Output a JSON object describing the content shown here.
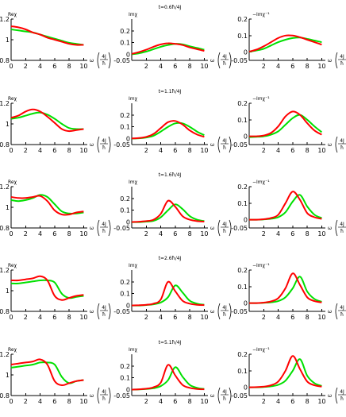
{
  "colors": {
    "red": "#ff0000",
    "green": "#00e000",
    "axis": "#000000"
  },
  "labels": {
    "re": "Reχ",
    "im": "Imχ",
    "neg": "−Imχ⁻¹",
    "omega": "ω",
    "unit_num": "4J",
    "unit_den": "ħ"
  },
  "chart_data": {
    "type": "line",
    "x_ticks": [
      0,
      2,
      4,
      6,
      8,
      10
    ],
    "x_range": [
      0,
      10.5
    ],
    "columns": [
      {
        "panel": "Reχ",
        "ylim": [
          0.8,
          1.2
        ],
        "y_ticks": [
          "0.8",
          "1",
          "1.2"
        ],
        "y_tick_values": [
          0.8,
          1.0,
          1.2
        ],
        "x_tick_labels": [
          "0",
          "2",
          "4",
          "6",
          "8",
          "10"
        ]
      },
      {
        "panel": "Imχ",
        "ylim": [
          -0.05,
          0.3
        ],
        "y_ticks": [
          "-0.05",
          "0",
          "0.1",
          "0.2"
        ],
        "y_tick_values": [
          -0.05,
          0.0,
          0.1,
          0.2
        ],
        "x_tick_labels": [
          "",
          "2",
          "4",
          "6",
          "8",
          "10"
        ]
      },
      {
        "panel": "−Imχ⁻¹",
        "ylim": [
          -0.05,
          0.2
        ],
        "y_ticks": [
          "-0.05",
          "0",
          "0.1",
          "0.2"
        ],
        "y_tick_values": [
          -0.05,
          0.0,
          0.1,
          0.2
        ],
        "x_tick_labels": [
          "",
          "2",
          "4",
          "6",
          "8",
          "10"
        ]
      }
    ],
    "rows": [
      {
        "title": "t=0.6ħ/4J",
        "panels": [
          {
            "red": {
              "x": [
                0,
                1,
                2,
                3,
                4,
                5,
                6,
                7,
                8,
                9,
                10
              ],
              "y": [
                1.13,
                1.12,
                1.1,
                1.07,
                1.05,
                1.02,
                1.0,
                0.98,
                0.96,
                0.95,
                0.95
              ]
            },
            "green": {
              "x": [
                0,
                1,
                2,
                3,
                4,
                5,
                6,
                7,
                8,
                9,
                10
              ],
              "y": [
                1.1,
                1.09,
                1.08,
                1.07,
                1.05,
                1.03,
                1.01,
                0.99,
                0.97,
                0.96,
                0.95
              ]
            }
          },
          {
            "red": {
              "x": [
                0,
                1,
                2,
                3,
                4,
                5,
                6,
                7,
                8,
                9,
                10
              ],
              "y": [
                0.005,
                0.02,
                0.04,
                0.065,
                0.085,
                0.095,
                0.09,
                0.08,
                0.06,
                0.045,
                0.03
              ]
            },
            "green": {
              "x": [
                0,
                1,
                2,
                3,
                4,
                5,
                6,
                7,
                8,
                9,
                10
              ],
              "y": [
                0.002,
                0.01,
                0.025,
                0.045,
                0.065,
                0.08,
                0.09,
                0.085,
                0.07,
                0.055,
                0.04
              ]
            }
          },
          {
            "red": {
              "x": [
                0,
                1,
                2,
                3,
                4,
                5,
                6,
                7,
                8,
                9,
                10
              ],
              "y": [
                0.003,
                0.015,
                0.035,
                0.06,
                0.085,
                0.1,
                0.1,
                0.09,
                0.075,
                0.06,
                0.045
              ]
            },
            "green": {
              "x": [
                0,
                1,
                2,
                3,
                4,
                5,
                6,
                7,
                8,
                9,
                10
              ],
              "y": [
                0.002,
                0.01,
                0.02,
                0.04,
                0.06,
                0.075,
                0.085,
                0.088,
                0.08,
                0.07,
                0.06
              ]
            }
          }
        ]
      },
      {
        "title": "t=1.1ħ/4J",
        "panels": [
          {
            "red": {
              "x": [
                0,
                1,
                2,
                3,
                4,
                5,
                6,
                7,
                8,
                9,
                10
              ],
              "y": [
                1.06,
                1.08,
                1.12,
                1.14,
                1.12,
                1.07,
                1.01,
                0.95,
                0.93,
                0.94,
                0.95
              ]
            },
            "green": {
              "x": [
                0,
                1,
                2,
                3,
                4,
                5,
                6,
                7,
                8,
                9,
                10
              ],
              "y": [
                1.05,
                1.06,
                1.08,
                1.1,
                1.11,
                1.09,
                1.05,
                1.0,
                0.96,
                0.95,
                0.95
              ]
            }
          },
          {
            "red": {
              "x": [
                0,
                1,
                2,
                3,
                4,
                5,
                6,
                7,
                8,
                9,
                10
              ],
              "y": [
                0.002,
                0.005,
                0.015,
                0.04,
                0.09,
                0.14,
                0.15,
                0.12,
                0.07,
                0.035,
                0.015
              ]
            },
            "green": {
              "x": [
                0,
                1,
                2,
                3,
                4,
                5,
                6,
                7,
                8,
                9,
                10
              ],
              "y": [
                0.001,
                0.003,
                0.01,
                0.025,
                0.06,
                0.1,
                0.13,
                0.13,
                0.1,
                0.06,
                0.03
              ]
            }
          },
          {
            "red": {
              "x": [
                0,
                1,
                2,
                3,
                4,
                5,
                6,
                7,
                8,
                9,
                10
              ],
              "y": [
                0.0,
                0.0,
                0.005,
                0.02,
                0.06,
                0.12,
                0.15,
                0.13,
                0.08,
                0.035,
                0.01
              ]
            },
            "green": {
              "x": [
                0,
                1,
                2,
                3,
                4,
                5,
                6,
                7,
                8,
                9,
                10
              ],
              "y": [
                -0.005,
                -0.003,
                0.0,
                0.01,
                0.03,
                0.07,
                0.11,
                0.13,
                0.1,
                0.06,
                0.025
              ]
            }
          }
        ]
      },
      {
        "title": "t=1.6ħ/4J",
        "panels": [
          {
            "red": {
              "x": [
                0,
                1,
                2,
                3,
                4,
                5,
                6,
                7,
                8,
                9,
                10
              ],
              "y": [
                1.1,
                1.09,
                1.09,
                1.1,
                1.11,
                1.06,
                0.97,
                0.93,
                0.93,
                0.95,
                0.96
              ]
            },
            "green": {
              "x": [
                0,
                1,
                2,
                3,
                4,
                5,
                6,
                7,
                8,
                9,
                10
              ],
              "y": [
                1.07,
                1.06,
                1.07,
                1.09,
                1.12,
                1.1,
                1.03,
                0.96,
                0.94,
                0.94,
                0.95
              ]
            }
          },
          {
            "red": {
              "x": [
                0,
                1,
                2,
                3,
                4,
                5,
                6,
                7,
                8,
                9,
                10
              ],
              "y": [
                0.0,
                0.003,
                0.008,
                0.02,
                0.07,
                0.18,
                0.13,
                0.05,
                0.02,
                0.008,
                0.004
              ]
            },
            "green": {
              "x": [
                0,
                1,
                2,
                3,
                4,
                5,
                6,
                7,
                8,
                9,
                10
              ],
              "y": [
                0.0,
                0.0,
                0.004,
                0.01,
                0.04,
                0.1,
                0.15,
                0.11,
                0.05,
                0.02,
                0.008
              ]
            }
          },
          {
            "red": {
              "x": [
                0,
                1,
                2,
                3,
                4,
                5,
                6,
                7,
                8,
                9,
                10
              ],
              "y": [
                0.0,
                0.0,
                0.003,
                0.01,
                0.03,
                0.1,
                0.17,
                0.12,
                0.04,
                0.015,
                0.005
              ]
            },
            "green": {
              "x": [
                0,
                1,
                2,
                3,
                4,
                5,
                6,
                7,
                8,
                9,
                10
              ],
              "y": [
                0.0,
                0.0,
                0.002,
                0.006,
                0.015,
                0.045,
                0.11,
                0.15,
                0.08,
                0.03,
                0.01
              ]
            }
          }
        ]
      },
      {
        "title": "t=2.6ħ/4J",
        "panels": [
          {
            "red": {
              "x": [
                0,
                1,
                2,
                3,
                4,
                5,
                6,
                7,
                8,
                9,
                10
              ],
              "y": [
                1.1,
                1.1,
                1.11,
                1.12,
                1.14,
                1.1,
                0.95,
                0.91,
                0.93,
                0.95,
                0.96
              ]
            },
            "green": {
              "x": [
                0,
                1,
                2,
                3,
                4,
                5,
                6,
                7,
                8,
                9,
                10
              ],
              "y": [
                1.07,
                1.07,
                1.08,
                1.09,
                1.1,
                1.1,
                1.08,
                0.97,
                0.93,
                0.94,
                0.95
              ]
            }
          },
          {
            "red": {
              "x": [
                0,
                1,
                2,
                3,
                4,
                5,
                6,
                7,
                8,
                9,
                10
              ],
              "y": [
                0.0,
                0.002,
                0.006,
                0.015,
                0.05,
                0.2,
                0.12,
                0.04,
                0.015,
                0.006,
                0.003
              ]
            },
            "green": {
              "x": [
                0,
                1,
                2,
                3,
                4,
                5,
                6,
                7,
                8,
                9,
                10
              ],
              "y": [
                0.0,
                0.0,
                0.004,
                0.01,
                0.025,
                0.07,
                0.17,
                0.11,
                0.04,
                0.015,
                0.006
              ]
            }
          },
          {
            "red": {
              "x": [
                0,
                1,
                2,
                3,
                4,
                5,
                6,
                7,
                8,
                9,
                10
              ],
              "y": [
                0.0,
                0.0,
                0.003,
                0.01,
                0.03,
                0.09,
                0.18,
                0.11,
                0.035,
                0.012,
                0.004
              ]
            },
            "green": {
              "x": [
                0,
                1,
                2,
                3,
                4,
                5,
                6,
                7,
                8,
                9,
                10
              ],
              "y": [
                0.0,
                0.0,
                0.002,
                0.005,
                0.012,
                0.035,
                0.09,
                0.16,
                0.07,
                0.025,
                0.008
              ]
            }
          }
        ]
      },
      {
        "title": "t=5.1ħ/4J",
        "panels": [
          {
            "red": {
              "x": [
                0,
                1,
                2,
                3,
                4,
                5,
                6,
                7,
                8,
                9,
                10
              ],
              "y": [
                1.1,
                1.11,
                1.12,
                1.13,
                1.15,
                1.1,
                0.94,
                0.9,
                0.92,
                0.94,
                0.95
              ]
            },
            "green": {
              "x": [
                0,
                1,
                2,
                3,
                4,
                5,
                6,
                7,
                8,
                9,
                10
              ],
              "y": [
                1.07,
                1.08,
                1.09,
                1.1,
                1.12,
                1.12,
                1.1,
                0.98,
                0.92,
                0.94,
                0.95
              ]
            }
          },
          {
            "red": {
              "x": [
                0,
                1,
                2,
                3,
                4,
                5,
                6,
                7,
                8,
                9,
                10
              ],
              "y": [
                0.0,
                0.003,
                0.008,
                0.02,
                0.06,
                0.21,
                0.12,
                0.04,
                0.015,
                0.006,
                0.003
              ]
            },
            "green": {
              "x": [
                0,
                1,
                2,
                3,
                4,
                5,
                6,
                7,
                8,
                9,
                10
              ],
              "y": [
                0.0,
                0.002,
                0.005,
                0.012,
                0.03,
                0.08,
                0.19,
                0.11,
                0.04,
                0.015,
                0.006
              ]
            }
          },
          {
            "red": {
              "x": [
                0,
                1,
                2,
                3,
                4,
                5,
                6,
                7,
                8,
                9,
                10
              ],
              "y": [
                0.0,
                0.001,
                0.004,
                0.012,
                0.035,
                0.1,
                0.19,
                0.11,
                0.035,
                0.012,
                0.004
              ]
            },
            "green": {
              "x": [
                0,
                1,
                2,
                3,
                4,
                5,
                6,
                7,
                8,
                9,
                10
              ],
              "y": [
                0.0,
                0.0,
                0.002,
                0.006,
                0.015,
                0.04,
                0.1,
                0.17,
                0.07,
                0.025,
                0.008
              ]
            }
          }
        ]
      }
    ]
  }
}
